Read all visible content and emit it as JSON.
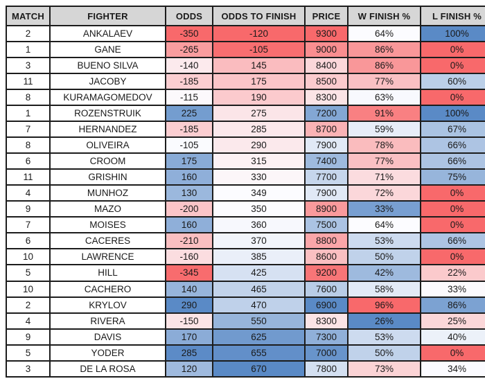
{
  "styles": {
    "header_bg": "#d6d6d6",
    "border_color": "#1c1c1c",
    "text_color": "#1a1a1a",
    "scale_red": "#F8696B",
    "scale_mid": "#FCFCFF",
    "scale_blue": "#5A8AC6"
  },
  "chart_data": {
    "type": "table",
    "legend_note": "3-color conditional formatting: red-white-blue, midpoint at column median",
    "columns": [
      {
        "key": "match",
        "label": "MATCH",
        "scale": "none"
      },
      {
        "key": "fighter",
        "label": "FIGHTER",
        "scale": "none"
      },
      {
        "key": "odds",
        "label": "ODDS",
        "scale": "red_low_blue_high"
      },
      {
        "key": "odds_to_finish",
        "label": "ODDS TO FINISH",
        "scale": "red_low_blue_high"
      },
      {
        "key": "price",
        "label": "PRICE",
        "scale": "blue_low_red_high"
      },
      {
        "key": "w_finish_pct",
        "label": "W FINISH %",
        "scale": "blue_low_red_high"
      },
      {
        "key": "l_finish_pct",
        "label": "L FINISH %",
        "scale": "red_low_blue_high"
      }
    ],
    "rows": [
      [
        "2",
        "ANKALAEV",
        "-350",
        "-120",
        "9300",
        "64%",
        "100%"
      ],
      [
        "1",
        "GANE",
        "-265",
        "-105",
        "9000",
        "86%",
        "0%"
      ],
      [
        "3",
        "BUENO SILVA",
        "-140",
        "145",
        "8400",
        "86%",
        "0%"
      ],
      [
        "11",
        "JACOBY",
        "-185",
        "175",
        "8500",
        "77%",
        "60%"
      ],
      [
        "8",
        "KURAMAGOMEDOV",
        "-115",
        "190",
        "8300",
        "63%",
        "0%"
      ],
      [
        "1",
        "ROZENSTRUIK",
        "225",
        "275",
        "7200",
        "91%",
        "100%"
      ],
      [
        "7",
        "HERNANDEZ",
        "-185",
        "285",
        "8700",
        "59%",
        "67%"
      ],
      [
        "8",
        "OLIVEIRA",
        "-105",
        "290",
        "7900",
        "78%",
        "66%"
      ],
      [
        "6",
        "CROOM",
        "175",
        "315",
        "7400",
        "77%",
        "66%"
      ],
      [
        "11",
        "GRISHIN",
        "160",
        "330",
        "7700",
        "71%",
        "75%"
      ],
      [
        "4",
        "MUNHOZ",
        "130",
        "349",
        "7900",
        "72%",
        "0%"
      ],
      [
        "9",
        "MAZO",
        "-200",
        "350",
        "8900",
        "33%",
        "0%"
      ],
      [
        "7",
        "MOISES",
        "160",
        "360",
        "7500",
        "64%",
        "0%"
      ],
      [
        "6",
        "CACERES",
        "-210",
        "370",
        "8800",
        "53%",
        "66%"
      ],
      [
        "10",
        "LAWRENCE",
        "-160",
        "385",
        "8600",
        "50%",
        "0%"
      ],
      [
        "5",
        "HILL",
        "-345",
        "425",
        "9200",
        "42%",
        "22%"
      ],
      [
        "10",
        "CACHERO",
        "140",
        "465",
        "7600",
        "58%",
        "33%"
      ],
      [
        "2",
        "KRYLOV",
        "290",
        "470",
        "6900",
        "96%",
        "86%"
      ],
      [
        "4",
        "RIVERA",
        "-150",
        "550",
        "8300",
        "26%",
        "25%"
      ],
      [
        "9",
        "DAVIS",
        "170",
        "625",
        "7300",
        "53%",
        "40%"
      ],
      [
        "5",
        "YODER",
        "285",
        "655",
        "7000",
        "50%",
        "0%"
      ],
      [
        "3",
        "DE LA ROSA",
        "120",
        "670",
        "7800",
        "73%",
        "34%"
      ]
    ]
  }
}
